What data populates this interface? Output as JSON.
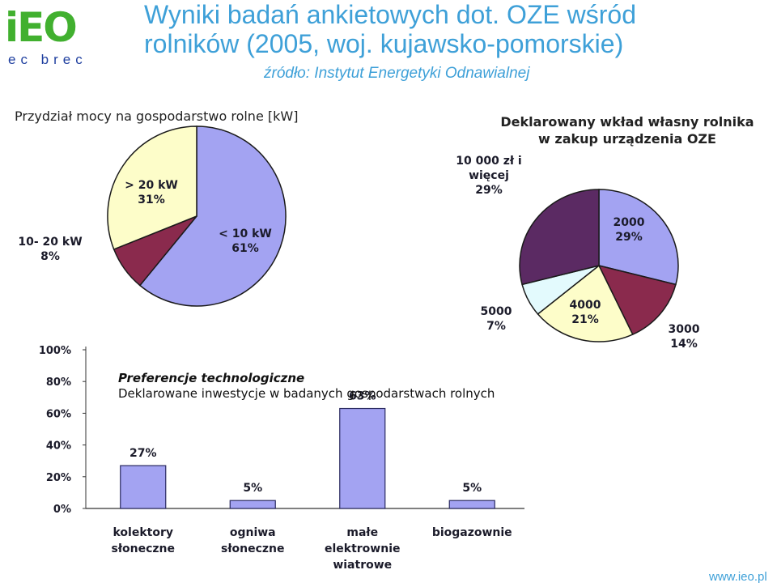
{
  "header": {
    "logo_text": "iEO",
    "logo_sub": "ec brec",
    "title_line1": "Wyniki badań ankietowych dot. OZE wśród",
    "title_line2": "rolników (2005, woj. kujawsko-pomorskie)",
    "subtitle": "źródło: Instytut Energetyki Odnawialnej"
  },
  "footer": {
    "url": "www.ieo.pl"
  },
  "colors": {
    "title": "#3ea0d8",
    "blue": "#a3a3f2",
    "maroon": "#8a2a4d",
    "cream": "#fdfdc9",
    "cyan": "#e3fafd",
    "purple": "#5b2a63"
  },
  "chart_data": [
    {
      "type": "pie",
      "title": "Przydział mocy na gospodarstwo rolne [kW]",
      "slices": [
        {
          "name": "< 10 kW",
          "value": 61,
          "label": "61%",
          "color": "#a3a3f2"
        },
        {
          "name": "10- 20 kW",
          "value": 8,
          "label": "8%",
          "color": "#8a2a4d"
        },
        {
          "name": "> 20 kW",
          "value": 31,
          "label": "31%",
          "color": "#fdfdc9"
        }
      ]
    },
    {
      "type": "pie",
      "title_line1": "Deklarowany wkład własny rolnika",
      "title_line2": "w zakup urządzenia OZE",
      "slices": [
        {
          "name": "2000",
          "value": 29,
          "label": "29%",
          "color": "#a3a3f2"
        },
        {
          "name": "3000",
          "value": 14,
          "label": "14%",
          "color": "#8a2a4d"
        },
        {
          "name": "4000",
          "value": 21,
          "label": "21%",
          "color": "#fdfdc9"
        },
        {
          "name": "5000",
          "value": 7,
          "label": "7%",
          "color": "#e3fafd"
        },
        {
          "name": "10 000 zł i więcej",
          "name_line1": "10 000 zł i",
          "name_line2": "więcej",
          "value": 29,
          "label": "29%",
          "color": "#5b2a63"
        }
      ]
    },
    {
      "type": "bar",
      "title": "Preferencje technologiczne",
      "subtitle": "Deklarowane inwestycje w badanych gospodarstwach rolnych",
      "categories": [
        {
          "line1": "kolektory",
          "line2": "słoneczne",
          "line3": ""
        },
        {
          "line1": "ogniwa",
          "line2": "słoneczne",
          "line3": ""
        },
        {
          "line1": "małe",
          "line2": "elektrownie",
          "line3": "wiatrowe"
        },
        {
          "line1": "biogazownie",
          "line2": "",
          "line3": ""
        }
      ],
      "values": [
        27,
        5,
        63,
        5
      ],
      "value_labels": [
        "27%",
        "5%",
        "63%",
        "5%"
      ],
      "yticks": [
        "0%",
        "20%",
        "40%",
        "60%",
        "80%",
        "100%"
      ],
      "ylim": [
        0,
        100
      ],
      "color": "#a3a3f2"
    }
  ]
}
